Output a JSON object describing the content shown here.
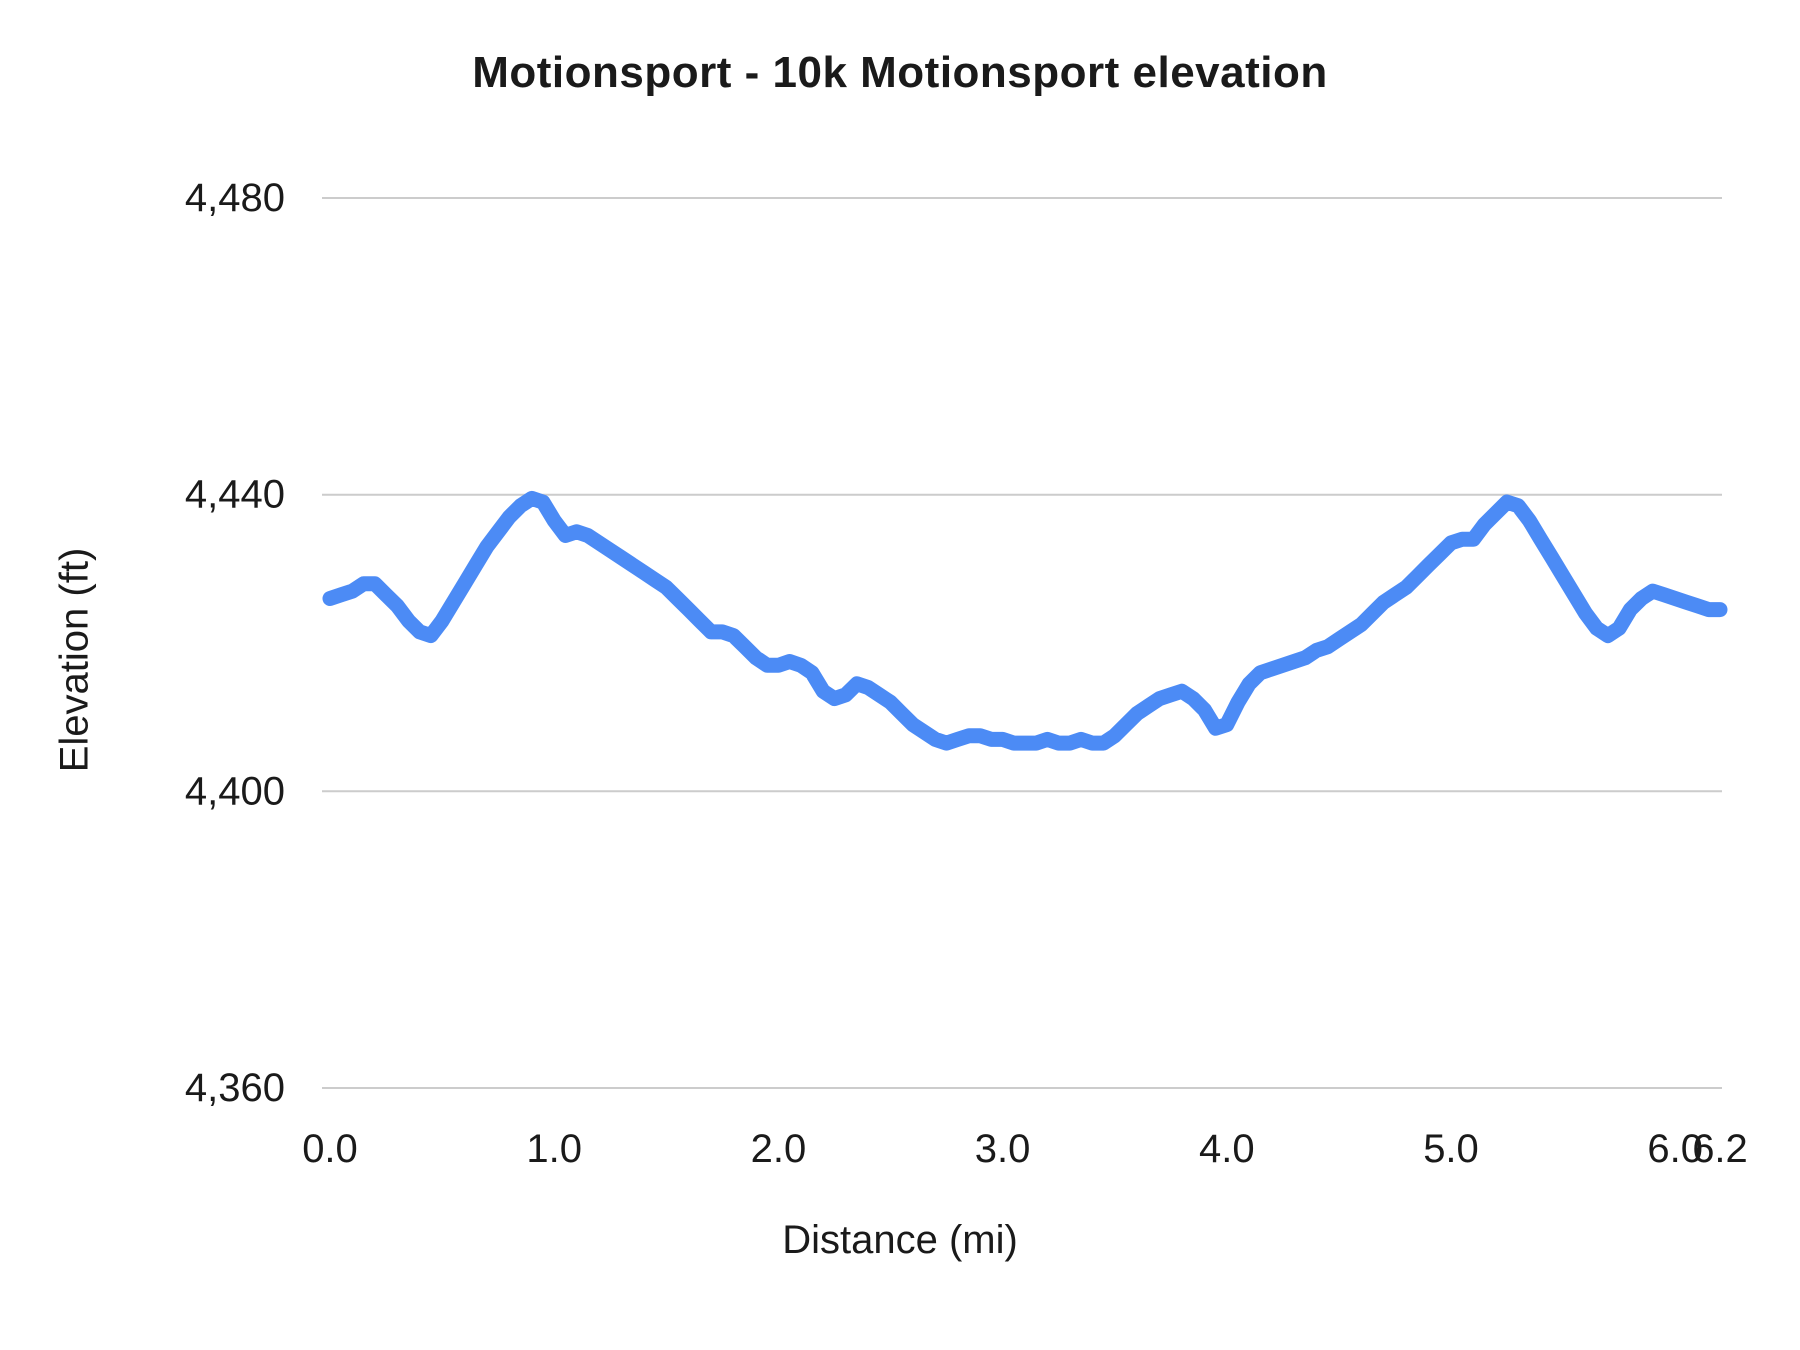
{
  "chart_data": {
    "type": "line",
    "title": "Motionsport - 10k Motionsport elevation",
    "xlabel": "Distance (mi)",
    "ylabel": "Elevation (ft)",
    "xlim": [
      0.0,
      6.2
    ],
    "ylim": [
      4360,
      4480
    ],
    "x_ticks": [
      0.0,
      1.0,
      2.0,
      3.0,
      4.0,
      5.0,
      6.0,
      6.2
    ],
    "x_tick_labels": [
      "0.0",
      "1.0",
      "2.0",
      "3.0",
      "4.0",
      "5.0",
      "6.0",
      "6.2"
    ],
    "y_ticks": [
      4360,
      4400,
      4440,
      4480
    ],
    "y_tick_labels": [
      "4,360",
      "4,400",
      "4,440",
      "4,480"
    ],
    "legend": "none",
    "grid": "horizontal-only",
    "line_color": "#4C8BF5",
    "grid_color": "#CCCCCC",
    "text_color": "#1A1A1A",
    "series": [
      {
        "name": "Elevation",
        "x": [
          0.0,
          0.05,
          0.1,
          0.15,
          0.2,
          0.25,
          0.3,
          0.35,
          0.4,
          0.45,
          0.5,
          0.55,
          0.6,
          0.65,
          0.7,
          0.75,
          0.8,
          0.85,
          0.9,
          0.95,
          1.0,
          1.05,
          1.1,
          1.15,
          1.2,
          1.25,
          1.3,
          1.35,
          1.4,
          1.45,
          1.5,
          1.55,
          1.6,
          1.65,
          1.7,
          1.75,
          1.8,
          1.85,
          1.9,
          1.95,
          2.0,
          2.05,
          2.1,
          2.15,
          2.2,
          2.25,
          2.3,
          2.35,
          2.4,
          2.45,
          2.5,
          2.55,
          2.6,
          2.65,
          2.7,
          2.75,
          2.8,
          2.85,
          2.9,
          2.95,
          3.0,
          3.05,
          3.1,
          3.15,
          3.2,
          3.25,
          3.3,
          3.35,
          3.4,
          3.45,
          3.5,
          3.55,
          3.6,
          3.65,
          3.7,
          3.75,
          3.8,
          3.85,
          3.9,
          3.95,
          4.0,
          4.05,
          4.1,
          4.15,
          4.2,
          4.25,
          4.3,
          4.35,
          4.4,
          4.45,
          4.5,
          4.55,
          4.6,
          4.65,
          4.7,
          4.75,
          4.8,
          4.85,
          4.9,
          4.95,
          5.0,
          5.05,
          5.1,
          5.15,
          5.2,
          5.25,
          5.3,
          5.35,
          5.4,
          5.45,
          5.5,
          5.55,
          5.6,
          5.65,
          5.7,
          5.75,
          5.8,
          5.85,
          5.9,
          5.95,
          6.0,
          6.05,
          6.1,
          6.15,
          6.2
        ],
        "y": [
          4426,
          4426.5,
          4427,
          4428,
          4428,
          4426.5,
          4425,
          4423,
          4421.5,
          4421,
          4423,
          4425.5,
          4428,
          4430.5,
          4433,
          4435,
          4437,
          4438.5,
          4439.5,
          4439,
          4436.5,
          4434.5,
          4435,
          4434.5,
          4433.5,
          4432.5,
          4431.5,
          4430.5,
          4429.5,
          4428.5,
          4427.5,
          4426,
          4424.5,
          4423,
          4421.5,
          4421.5,
          4421,
          4419.5,
          4418,
          4417,
          4417,
          4417.5,
          4417,
          4416,
          4413.5,
          4412.5,
          4413,
          4414.5,
          4414,
          4413,
          4412,
          4410.5,
          4409,
          4408,
          4407,
          4406.5,
          4407,
          4407.5,
          4407.5,
          4407,
          4407,
          4406.5,
          4406.5,
          4406.5,
          4407,
          4406.5,
          4406.5,
          4407,
          4406.5,
          4406.5,
          4407.5,
          4409,
          4410.5,
          4411.5,
          4412.5,
          4413,
          4413.5,
          4412.5,
          4411,
          4408.5,
          4409,
          4412,
          4414.5,
          4416,
          4416.5,
          4417,
          4417.5,
          4418,
          4419,
          4419.5,
          4420.5,
          4421.5,
          4422.5,
          4424,
          4425.5,
          4426.5,
          4427.5,
          4429,
          4430.5,
          4432,
          4433.5,
          4434,
          4434,
          4436,
          4437.5,
          4439,
          4438.5,
          4436.5,
          4434,
          4431.5,
          4429,
          4426.5,
          4424,
          4422,
          4421,
          4422,
          4424.5,
          4426,
          4427,
          4426.5,
          4426,
          4425.5,
          4425,
          4424.5,
          4424.5
        ]
      }
    ]
  }
}
